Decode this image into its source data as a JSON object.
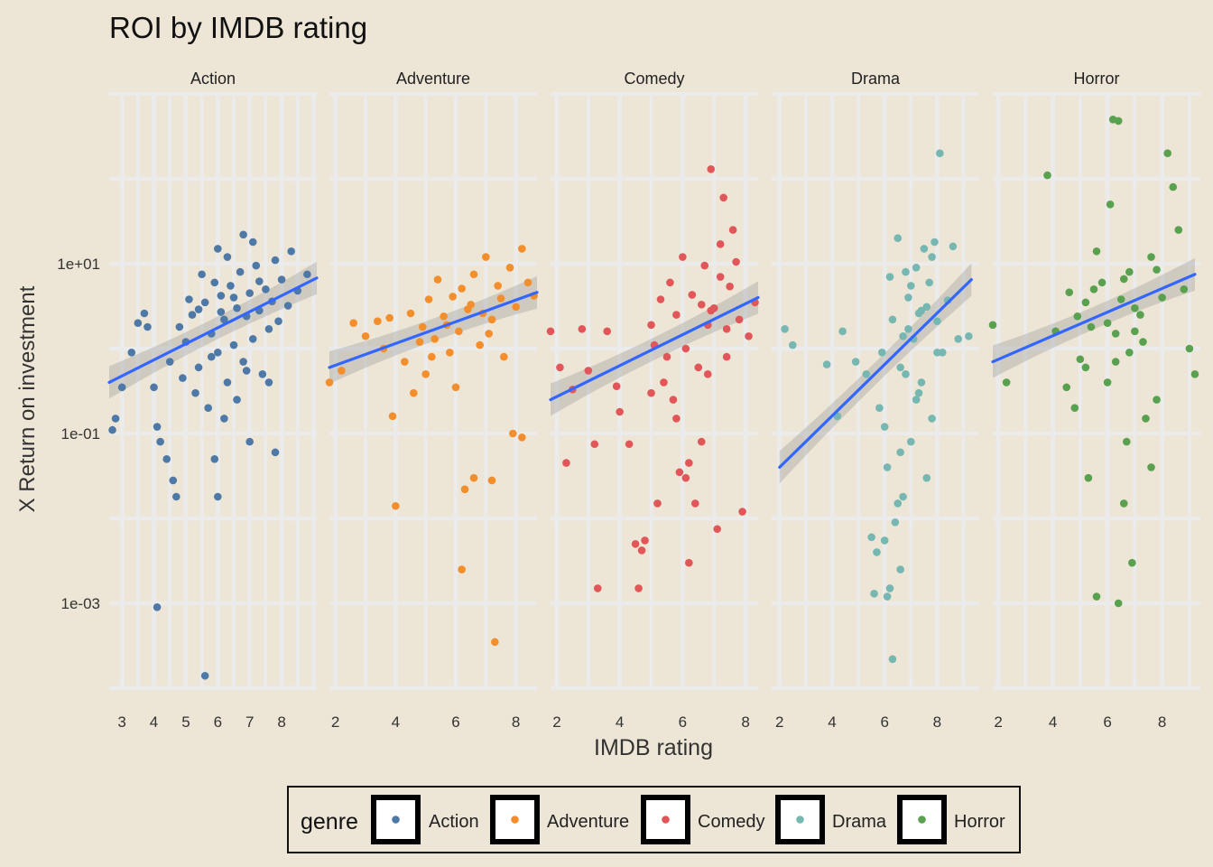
{
  "chart_data": {
    "type": "scatter",
    "title": "ROI by IMDB rating",
    "xlabel": "IMDB rating",
    "ylabel": "X Return on investment",
    "y_scale": "log10",
    "y_ticks": [
      {
        "value": 10,
        "label": "1e+01"
      },
      {
        "value": 0.1,
        "label": "1e-01"
      },
      {
        "value": 0.001,
        "label": "1e-03"
      }
    ],
    "grid": true,
    "legend_title": "genre",
    "legend_position": "bottom",
    "trend": "linear fit with confidence band",
    "panels": [
      {
        "name": "Action",
        "color": "#4e79a7",
        "xlim": [
          2.6,
          9.1
        ],
        "xticks": [
          3,
          4,
          5,
          6,
          7,
          8
        ],
        "fit": {
          "x": [
            2.6,
            9.1
          ],
          "y": [
            0.4,
            6.8
          ]
        },
        "points": [
          [
            2.7,
            0.11
          ],
          [
            2.8,
            0.15
          ],
          [
            3.0,
            0.35
          ],
          [
            3.3,
            0.9
          ],
          [
            3.5,
            2.0
          ],
          [
            3.7,
            2.6
          ],
          [
            3.8,
            1.8
          ],
          [
            4.0,
            0.35
          ],
          [
            4.1,
            0.12
          ],
          [
            4.2,
            0.08
          ],
          [
            4.4,
            0.05
          ],
          [
            4.6,
            0.028
          ],
          [
            4.7,
            0.018
          ],
          [
            4.1,
            0.0009
          ],
          [
            5.6,
            0.00014
          ],
          [
            5.9,
            0.05
          ],
          [
            6.0,
            0.018
          ],
          [
            7.0,
            0.08
          ],
          [
            7.8,
            0.06
          ],
          [
            5.0,
            1.2
          ],
          [
            5.2,
            2.5
          ],
          [
            5.4,
            0.6
          ],
          [
            5.6,
            3.5
          ],
          [
            5.8,
            1.5
          ],
          [
            5.9,
            6.0
          ],
          [
            6.0,
            0.9
          ],
          [
            6.1,
            4.2
          ],
          [
            6.2,
            2.2
          ],
          [
            6.3,
            0.4
          ],
          [
            6.4,
            5.5
          ],
          [
            6.5,
            1.1
          ],
          [
            6.6,
            3.0
          ],
          [
            6.7,
            8.0
          ],
          [
            6.8,
            0.7
          ],
          [
            6.9,
            2.4
          ],
          [
            7.0,
            4.5
          ],
          [
            7.1,
            1.3
          ],
          [
            7.2,
            9.5
          ],
          [
            7.3,
            2.8
          ],
          [
            7.4,
            0.5
          ],
          [
            7.5,
            5.0
          ],
          [
            7.6,
            1.7
          ],
          [
            7.7,
            3.6
          ],
          [
            7.8,
            11
          ],
          [
            7.9,
            2.1
          ],
          [
            8.0,
            6.5
          ],
          [
            8.2,
            3.2
          ],
          [
            8.3,
            14
          ],
          [
            8.5,
            4.8
          ],
          [
            8.8,
            7.5
          ],
          [
            6.8,
            22
          ],
          [
            6.0,
            15
          ],
          [
            5.5,
            7.5
          ],
          [
            5.3,
            0.3
          ],
          [
            5.7,
            0.2
          ],
          [
            6.2,
            0.15
          ],
          [
            6.6,
            0.25
          ],
          [
            4.8,
            1.8
          ],
          [
            5.1,
            3.8
          ],
          [
            4.5,
            0.7
          ],
          [
            6.3,
            12
          ],
          [
            7.1,
            18
          ],
          [
            5.8,
            0.8
          ],
          [
            6.9,
            0.55
          ],
          [
            7.6,
            0.4
          ],
          [
            4.9,
            0.45
          ],
          [
            5.4,
            2.9
          ],
          [
            6.5,
            4.0
          ],
          [
            7.3,
            6.2
          ],
          [
            6.1,
            2.7
          ]
        ]
      },
      {
        "name": "Adventure",
        "color": "#f28e2b",
        "xlim": [
          1.8,
          8.7
        ],
        "xticks": [
          2,
          4,
          6,
          8
        ],
        "fit": {
          "x": [
            1.8,
            8.7
          ],
          "y": [
            0.6,
            4.6
          ]
        },
        "points": [
          [
            1.8,
            0.4
          ],
          [
            2.2,
            0.55
          ],
          [
            2.6,
            2.0
          ],
          [
            3.0,
            1.4
          ],
          [
            3.4,
            2.1
          ],
          [
            3.6,
            1.0
          ],
          [
            3.8,
            2.3
          ],
          [
            4.0,
            0.014
          ],
          [
            4.3,
            0.7
          ],
          [
            4.6,
            0.3
          ],
          [
            4.9,
            1.8
          ],
          [
            5.1,
            3.8
          ],
          [
            5.3,
            1.3
          ],
          [
            5.4,
            6.5
          ],
          [
            5.6,
            2.4
          ],
          [
            5.8,
            0.9
          ],
          [
            5.9,
            4.1
          ],
          [
            6.1,
            1.6
          ],
          [
            6.2,
            0.0025
          ],
          [
            6.3,
            0.022
          ],
          [
            6.4,
            2.9
          ],
          [
            6.6,
            7.5
          ],
          [
            6.8,
            1.1
          ],
          [
            7.0,
            12
          ],
          [
            7.2,
            2.2
          ],
          [
            7.3,
            0.00035
          ],
          [
            7.4,
            5.5
          ],
          [
            7.6,
            0.8
          ],
          [
            7.8,
            9
          ],
          [
            8.0,
            3.1
          ],
          [
            8.2,
            15
          ],
          [
            8.4,
            6
          ],
          [
            8.6,
            4.2
          ],
          [
            7.9,
            0.1
          ],
          [
            8.2,
            0.09
          ],
          [
            7.2,
            0.028
          ],
          [
            6.6,
            0.03
          ],
          [
            3.9,
            0.16
          ],
          [
            6.0,
            0.35
          ],
          [
            5.0,
            0.5
          ],
          [
            4.5,
            2.6
          ],
          [
            5.7,
            1.9
          ],
          [
            6.5,
            3.3
          ],
          [
            7.1,
            1.5
          ],
          [
            5.2,
            0.8
          ],
          [
            4.8,
            1.2
          ],
          [
            6.9,
            2.6
          ],
          [
            7.5,
            3.9
          ],
          [
            6.2,
            5.1
          ]
        ]
      },
      {
        "name": "Comedy",
        "color": "#e15759",
        "xlim": [
          1.8,
          8.4
        ],
        "xticks": [
          2,
          4,
          6,
          8
        ],
        "fit": {
          "x": [
            1.8,
            8.4
          ],
          "y": [
            0.25,
            4.0
          ]
        },
        "points": [
          [
            1.8,
            1.6
          ],
          [
            2.1,
            0.6
          ],
          [
            2.3,
            0.045
          ],
          [
            2.5,
            0.33
          ],
          [
            2.8,
            1.7
          ],
          [
            3.0,
            0.55
          ],
          [
            3.2,
            0.075
          ],
          [
            3.3,
            0.0015
          ],
          [
            3.6,
            1.6
          ],
          [
            3.9,
            0.36
          ],
          [
            4.0,
            0.18
          ],
          [
            4.3,
            0.075
          ],
          [
            4.5,
            0.005
          ],
          [
            4.6,
            0.0015
          ],
          [
            4.8,
            0.0055
          ],
          [
            5.0,
            0.3
          ],
          [
            5.1,
            1.1
          ],
          [
            5.2,
            0.015
          ],
          [
            5.3,
            3.8
          ],
          [
            5.5,
            0.8
          ],
          [
            5.6,
            6.0
          ],
          [
            5.7,
            0.25
          ],
          [
            5.8,
            2.5
          ],
          [
            6.0,
            12
          ],
          [
            6.1,
            1.0
          ],
          [
            6.2,
            0.045
          ],
          [
            6.3,
            4.3
          ],
          [
            6.5,
            0.6
          ],
          [
            6.6,
            0.08
          ],
          [
            6.7,
            9.5
          ],
          [
            6.8,
            1.9
          ],
          [
            6.9,
            130
          ],
          [
            7.0,
            3.0
          ],
          [
            7.1,
            0.0075
          ],
          [
            7.2,
            17
          ],
          [
            7.3,
            60
          ],
          [
            7.4,
            0.8
          ],
          [
            7.5,
            5.4
          ],
          [
            7.6,
            25
          ],
          [
            7.8,
            2.2
          ],
          [
            7.9,
            0.012
          ],
          [
            8.1,
            1.4
          ],
          [
            8.3,
            3.5
          ],
          [
            5.9,
            0.035
          ],
          [
            6.4,
            0.015
          ],
          [
            6.2,
            0.003
          ],
          [
            5.4,
            0.4
          ],
          [
            5.0,
            1.9
          ],
          [
            6.8,
            0.5
          ],
          [
            7.2,
            7.0
          ],
          [
            7.7,
            10.5
          ],
          [
            5.8,
            0.15
          ],
          [
            6.6,
            3.3
          ],
          [
            6.1,
            0.03
          ],
          [
            4.7,
            0.0042
          ],
          [
            6.9,
            2.8
          ],
          [
            7.4,
            1.7
          ]
        ]
      },
      {
        "name": "Drama",
        "color": "#76b7b2",
        "xlim": [
          1.7,
          9.6
        ],
        "xticks": [
          2,
          4,
          6,
          8
        ],
        "fit": {
          "x": [
            2.0,
            9.3
          ],
          "y": [
            0.04,
            6.5
          ]
        },
        "points": [
          [
            2.2,
            1.7
          ],
          [
            2.5,
            1.1
          ],
          [
            3.8,
            0.65
          ],
          [
            4.2,
            0.16
          ],
          [
            4.4,
            1.6
          ],
          [
            4.9,
            0.7
          ],
          [
            5.3,
            0.5
          ],
          [
            5.5,
            0.006
          ],
          [
            5.7,
            0.004
          ],
          [
            6.0,
            0.0055
          ],
          [
            6.1,
            0.04
          ],
          [
            6.2,
            0.0015
          ],
          [
            6.3,
            0.00022
          ],
          [
            6.4,
            0.009
          ],
          [
            6.6,
            0.0025
          ],
          [
            6.7,
            0.018
          ],
          [
            6.8,
            0.5
          ],
          [
            6.9,
            4.0
          ],
          [
            7.0,
            0.08
          ],
          [
            7.1,
            1.3
          ],
          [
            7.2,
            9.0
          ],
          [
            7.3,
            0.3
          ],
          [
            7.4,
            2.8
          ],
          [
            7.5,
            15
          ],
          [
            7.6,
            0.03
          ],
          [
            7.7,
            6.0
          ],
          [
            7.8,
            0.15
          ],
          [
            8.0,
            2.1
          ],
          [
            8.1,
            200
          ],
          [
            8.2,
            0.9
          ],
          [
            8.4,
            3.7
          ],
          [
            8.6,
            16
          ],
          [
            8.8,
            1.3
          ],
          [
            6.5,
            20
          ],
          [
            7.9,
            18
          ],
          [
            6.0,
            0.12
          ],
          [
            6.6,
            0.6
          ],
          [
            7.2,
            0.25
          ],
          [
            6.3,
            2.2
          ],
          [
            7.0,
            5.5
          ],
          [
            7.6,
            3.1
          ],
          [
            5.9,
            0.9
          ],
          [
            6.7,
            1.4
          ],
          [
            7.4,
            0.4
          ],
          [
            8.0,
            0.9
          ],
          [
            6.2,
            7.0
          ],
          [
            7.8,
            12
          ],
          [
            6.9,
            1.7
          ],
          [
            5.8,
            0.2
          ],
          [
            6.5,
            0.015
          ],
          [
            7.3,
            2.6
          ],
          [
            6.8,
            8.0
          ],
          [
            9.2,
            1.4
          ],
          [
            6.1,
            0.0012
          ],
          [
            5.6,
            0.0013
          ],
          [
            6.6,
            0.06
          ]
        ]
      },
      {
        "name": "Horror",
        "color": "#59a14f",
        "xlim": [
          1.8,
          9.4
        ],
        "xticks": [
          2,
          4,
          6,
          8
        ],
        "fit": {
          "x": [
            1.8,
            9.2
          ],
          "y": [
            0.7,
            7.5
          ]
        },
        "points": [
          [
            1.8,
            1.9
          ],
          [
            2.3,
            0.4
          ],
          [
            3.8,
            110
          ],
          [
            4.1,
            1.6
          ],
          [
            4.5,
            0.35
          ],
          [
            4.8,
            0.2
          ],
          [
            5.0,
            0.75
          ],
          [
            5.2,
            3.5
          ],
          [
            5.3,
            0.03
          ],
          [
            5.4,
            1.8
          ],
          [
            5.6,
            0.0012
          ],
          [
            5.8,
            6.0
          ],
          [
            6.0,
            0.4
          ],
          [
            6.1,
            50
          ],
          [
            6.3,
            1.5
          ],
          [
            6.4,
            0.001
          ],
          [
            6.5,
            3.8
          ],
          [
            6.6,
            0.015
          ],
          [
            6.7,
            0.08
          ],
          [
            6.8,
            8.0
          ],
          [
            6.9,
            0.003
          ],
          [
            7.0,
            1.6
          ],
          [
            7.2,
            2.5
          ],
          [
            7.4,
            0.15
          ],
          [
            7.6,
            12
          ],
          [
            7.8,
            0.25
          ],
          [
            8.0,
            4.0
          ],
          [
            8.2,
            200
          ],
          [
            8.4,
            80
          ],
          [
            8.6,
            25
          ],
          [
            8.8,
            5.0
          ],
          [
            9.0,
            1.0
          ],
          [
            9.2,
            0.5
          ],
          [
            6.2,
            500
          ],
          [
            6.4,
            480
          ],
          [
            5.6,
            14
          ],
          [
            4.6,
            4.6
          ],
          [
            6.0,
            2.0
          ],
          [
            6.8,
            0.9
          ],
          [
            5.2,
            0.6
          ],
          [
            7.0,
            3.0
          ],
          [
            7.6,
            0.04
          ],
          [
            5.5,
            5.0
          ],
          [
            6.6,
            6.6
          ],
          [
            7.3,
            1.2
          ],
          [
            4.9,
            2.4
          ],
          [
            6.3,
            0.7
          ],
          [
            7.8,
            8.5
          ]
        ]
      }
    ]
  }
}
